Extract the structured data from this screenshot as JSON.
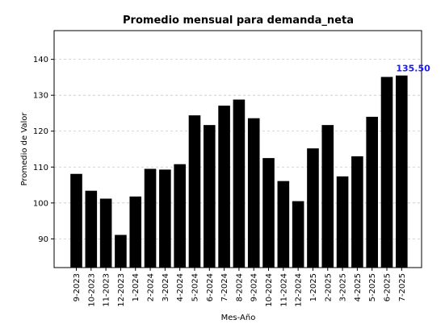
{
  "chart_data": {
    "type": "bar",
    "title": "Promedio mensual para demanda_neta",
    "xlabel": "Mes-Año",
    "ylabel": "Promedio de Valor",
    "categories": [
      "9-2023",
      "10-2023",
      "11-2023",
      "12-2023",
      "1-2024",
      "2-2024",
      "3-2024",
      "4-2024",
      "5-2024",
      "6-2024",
      "7-2024",
      "8-2024",
      "9-2024",
      "10-2024",
      "11-2024",
      "12-2024",
      "1-2025",
      "2-2025",
      "3-2025",
      "4-2025",
      "5-2025",
      "6-2025",
      "7-2025"
    ],
    "values": [
      108.1,
      103.4,
      101.2,
      91.1,
      101.8,
      109.5,
      109.3,
      110.8,
      124.4,
      121.7,
      127.1,
      128.8,
      123.6,
      112.5,
      106.1,
      100.5,
      115.2,
      121.7,
      107.4,
      113.0,
      124.0,
      135.1,
      135.5
    ],
    "ylim": [
      82,
      148
    ],
    "yticks": [
      90,
      100,
      110,
      120,
      130,
      140
    ],
    "grid": "y-dashed",
    "bar_color": "#000000",
    "highlight_label": {
      "text": "135.50",
      "color": "#1a1aff"
    }
  }
}
